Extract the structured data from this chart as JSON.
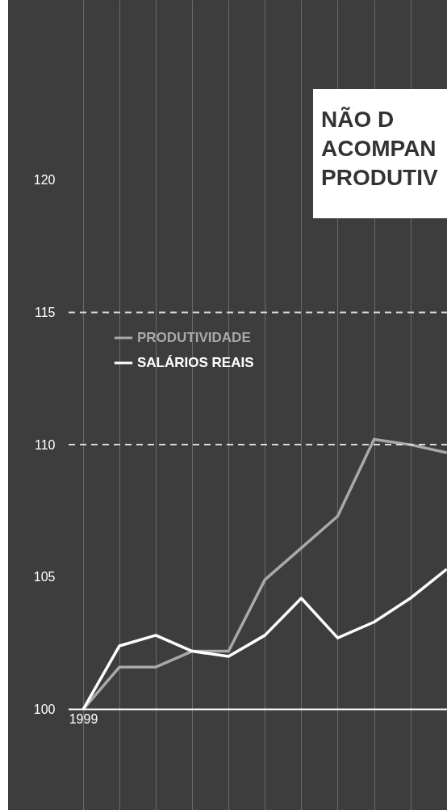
{
  "chart_data": {
    "type": "line",
    "categories": [
      "1999",
      null,
      null,
      null,
      null,
      null,
      null,
      null,
      null,
      null,
      null
    ],
    "series": [
      {
        "name": "PRODUTIVIDADE",
        "color": "#a9a9a9",
        "values": [
          100,
          101.6,
          101.6,
          102.2,
          102.2,
          104.9,
          106.1,
          107.3,
          110.2,
          110.0,
          109.7
        ]
      },
      {
        "name": "SALÁRIOS REAIS",
        "color": "#ffffff",
        "values": [
          100,
          102.4,
          102.8,
          102.2,
          102.0,
          102.8,
          104.2,
          102.7,
          103.3,
          104.2,
          105.3
        ]
      }
    ],
    "ylim": [
      96.2,
      126.8
    ],
    "yticks": [
      100,
      105,
      110,
      115,
      120
    ],
    "ref_lines": [
      {
        "axis": "y",
        "value": 115,
        "color": "#d9d9d9",
        "line_style": "dashed"
      },
      {
        "axis": "y",
        "value": 110,
        "color": "#d9d9d9",
        "line_style": "dashed"
      },
      {
        "axis": "y",
        "value": 100,
        "color": "#ffffff",
        "line_style": "solid"
      }
    ],
    "annotations": [
      "NÃO D\nACOMPAN\nPRODUTIV"
    ],
    "grid": "x",
    "legend": "top left",
    "line_style": "solid"
  }
}
